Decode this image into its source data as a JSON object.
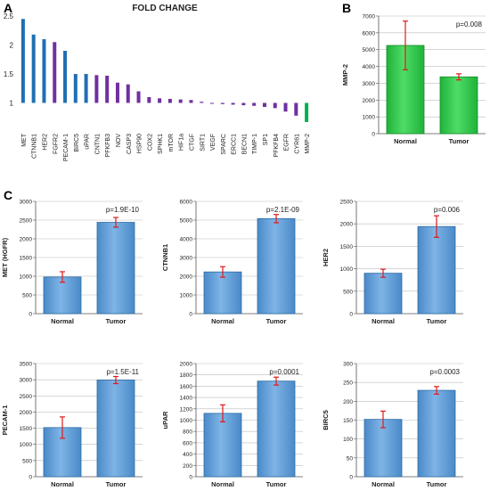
{
  "panel_labels": [
    "A",
    "B",
    "C"
  ],
  "chart_data": [
    {
      "id": "A",
      "type": "bar",
      "title": "FOLD CHANGE",
      "baseline": 1,
      "ylim": [
        0.5,
        2.5
      ],
      "yticks": [
        "0.5",
        "1",
        "1.5",
        "2",
        "2.5"
      ],
      "categories": [
        "MET",
        "CTNNB1",
        "HER2",
        "FGFR2",
        "PECAM-1",
        "BIRC5",
        "uPAR",
        "CNTN1",
        "PFKFB3",
        "NOV",
        "CASP3",
        "HSP90",
        "COX2",
        "SPHK1",
        "mTOR",
        "HIF1a",
        "CTGF",
        "SIRT1",
        "VEGF",
        "SPARC",
        "ERCC1",
        "BECN1",
        "TIMP-1",
        "SP1",
        "PFKFB4",
        "EGFR",
        "CYR61",
        "MMP-2"
      ],
      "values": [
        2.45,
        2.18,
        2.1,
        2.05,
        1.9,
        1.5,
        1.5,
        1.48,
        1.47,
        1.35,
        1.32,
        1.2,
        1.1,
        1.08,
        1.07,
        1.06,
        1.05,
        1.02,
        1.0,
        0.98,
        0.97,
        0.96,
        0.95,
        0.93,
        0.91,
        0.85,
        0.78,
        0.67
      ],
      "colors": [
        "#1f6fb3",
        "#1f6fb3",
        "#1f6fb3",
        "#7030a0",
        "#1f6fb3",
        "#1f6fb3",
        "#1f6fb3",
        "#7030a0",
        "#7030a0",
        "#7030a0",
        "#7030a0",
        "#7030a0",
        "#7030a0",
        "#7030a0",
        "#7030a0",
        "#7030a0",
        "#7030a0",
        "#7030a0",
        "#7030a0",
        "#7030a0",
        "#7030a0",
        "#7030a0",
        "#7030a0",
        "#7030a0",
        "#7030a0",
        "#7030a0",
        "#7030a0",
        "#00b050"
      ]
    },
    {
      "id": "B",
      "type": "bar",
      "ylabel": "MMP-2",
      "ylim": [
        0,
        7000
      ],
      "yticks": [
        "0",
        "1000",
        "2000",
        "3000",
        "4000",
        "5000",
        "6000",
        "7000"
      ],
      "categories": [
        "Normal",
        "Tumor"
      ],
      "values": [
        5250,
        3380
      ],
      "errors": [
        1450,
        180
      ],
      "pvalue": "p=0.008",
      "color": "#2ecc40",
      "edge": "#1a8a2a"
    },
    {
      "id": "C1",
      "type": "bar",
      "ylabel": "MET (HGFR)",
      "ylim": [
        0,
        3000
      ],
      "yticks": [
        "0",
        "500",
        "1000",
        "1500",
        "2000",
        "2500",
        "3000"
      ],
      "categories": [
        "Normal",
        "Tumor"
      ],
      "values": [
        980,
        2440
      ],
      "errors": [
        140,
        130
      ],
      "pvalue": "p=1.9E-10",
      "color": "#5b9bd5",
      "edge": "#2e6da4"
    },
    {
      "id": "C2",
      "type": "bar",
      "ylabel": "CTNNB1",
      "ylim": [
        0,
        6000
      ],
      "yticks": [
        "0",
        "1000",
        "2000",
        "3000",
        "4000",
        "5000",
        "6000"
      ],
      "categories": [
        "Normal",
        "Tumor"
      ],
      "values": [
        2230,
        5080
      ],
      "errors": [
        280,
        220
      ],
      "pvalue": "p=2.1E-09",
      "color": "#5b9bd5",
      "edge": "#2e6da4"
    },
    {
      "id": "C3",
      "type": "bar",
      "ylabel": "HER2",
      "ylim": [
        0,
        2500
      ],
      "yticks": [
        "0",
        "500",
        "1000",
        "1500",
        "2000",
        "2500"
      ],
      "categories": [
        "Normal",
        "Tumor"
      ],
      "values": [
        900,
        1940
      ],
      "errors": [
        90,
        240
      ],
      "pvalue": "p=0.006",
      "color": "#5b9bd5",
      "edge": "#2e6da4"
    },
    {
      "id": "C4",
      "type": "bar",
      "ylabel": "PECAM-1",
      "ylim": [
        0,
        3500
      ],
      "yticks": [
        "0",
        "500",
        "1000",
        "1500",
        "2000",
        "2500",
        "3000",
        "3500"
      ],
      "categories": [
        "Normal",
        "Tumor"
      ],
      "values": [
        1520,
        2990
      ],
      "errors": [
        330,
        110
      ],
      "pvalue": "p=1.5E-11",
      "color": "#5b9bd5",
      "edge": "#2e6da4"
    },
    {
      "id": "C5",
      "type": "bar",
      "ylabel": "uPAR",
      "ylim": [
        0,
        2000
      ],
      "yticks": [
        "0",
        "200",
        "400",
        "600",
        "800",
        "1000",
        "1200",
        "1400",
        "1600",
        "1800",
        "2000"
      ],
      "categories": [
        "Normal",
        "Tumor"
      ],
      "values": [
        1120,
        1690
      ],
      "errors": [
        150,
        70
      ],
      "pvalue": "p=0.0001",
      "color": "#5b9bd5",
      "edge": "#2e6da4"
    },
    {
      "id": "C6",
      "type": "bar",
      "ylabel": "BIRC5",
      "ylim": [
        0,
        300
      ],
      "yticks": [
        "0",
        "50",
        "100",
        "150",
        "200",
        "250",
        "300"
      ],
      "categories": [
        "Normal",
        "Tumor"
      ],
      "values": [
        152,
        229
      ],
      "errors": [
        22,
        10
      ],
      "pvalue": "p=0.0003",
      "color": "#5b9bd5",
      "edge": "#2e6da4"
    }
  ]
}
